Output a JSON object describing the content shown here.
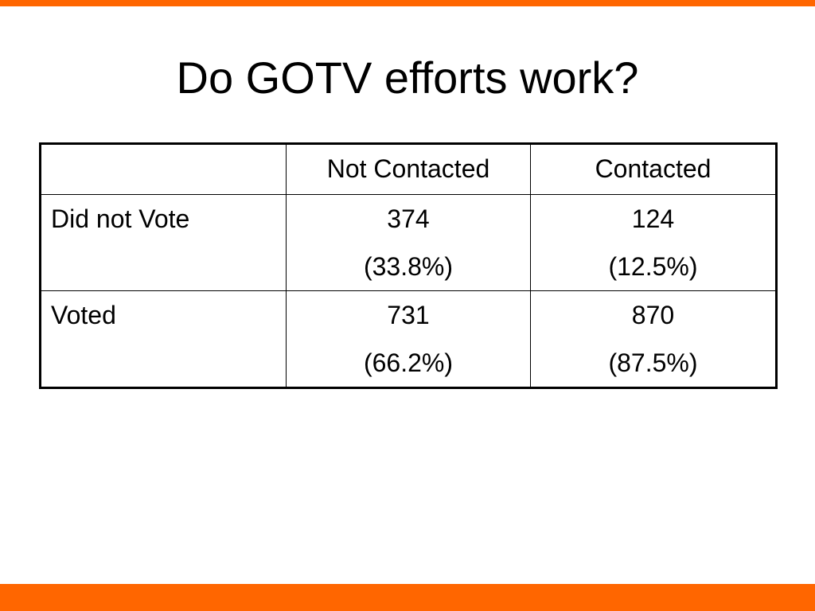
{
  "slide": {
    "title": "Do GOTV efforts work?",
    "accent_color": "#ff6600"
  },
  "table": {
    "columns": [
      "",
      "Not Contacted",
      "Contacted"
    ],
    "rows": [
      {
        "label": "Did not Vote",
        "not_contacted": {
          "count": "374",
          "pct": "(33.8%)"
        },
        "contacted": {
          "count": "124",
          "pct": "(12.5%)"
        }
      },
      {
        "label": "Voted",
        "not_contacted": {
          "count": "731",
          "pct": "(66.2%)"
        },
        "contacted": {
          "count": "870",
          "pct": "(87.5%)"
        }
      }
    ]
  }
}
